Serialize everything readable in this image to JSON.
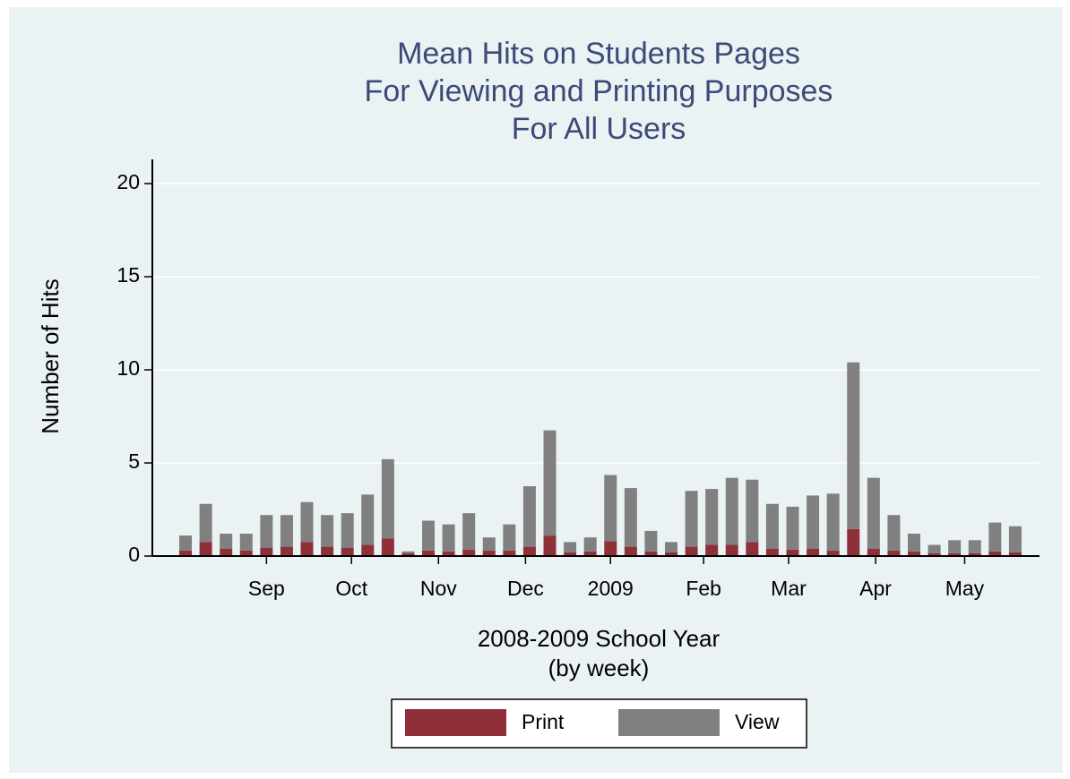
{
  "chart_data": {
    "type": "bar",
    "stacked": true,
    "title": [
      "Mean Hits on Students Pages",
      "For Viewing and Printing Purposes",
      "For All Users"
    ],
    "y_label": "Number of Hits",
    "x_label": [
      "2008-2009 School Year",
      "(by week)"
    ],
    "categories": [
      null,
      null,
      null,
      null,
      null,
      null,
      null,
      null,
      null,
      null,
      null,
      null,
      null,
      null,
      null,
      null,
      null,
      null,
      null,
      null,
      null,
      null,
      null,
      null,
      null,
      null,
      null,
      null,
      null,
      null,
      null,
      null,
      null,
      null,
      null,
      null,
      null,
      null,
      null,
      null,
      null,
      null
    ],
    "series": [
      {
        "name": "Print",
        "color": "#8f3039",
        "values": [
          0.3,
          0.75,
          0.4,
          0.3,
          0.45,
          0.5,
          0.75,
          0.5,
          0.45,
          0.6,
          0.95,
          0.15,
          0.3,
          0.25,
          0.35,
          0.3,
          0.3,
          0.5,
          1.1,
          0.2,
          0.25,
          0.8,
          0.5,
          0.25,
          0.2,
          0.5,
          0.6,
          0.6,
          0.75,
          0.4,
          0.35,
          0.4,
          0.3,
          1.45,
          0.4,
          0.3,
          0.25,
          0.15,
          0.15,
          0.15,
          0.25,
          0.2
        ]
      },
      {
        "name": "View",
        "color": "#808080",
        "values": [
          0.8,
          2.05,
          0.8,
          0.9,
          1.75,
          1.7,
          2.15,
          1.7,
          1.85,
          2.7,
          4.25,
          0.1,
          1.6,
          1.45,
          1.95,
          0.7,
          1.4,
          3.25,
          5.65,
          0.55,
          0.75,
          3.55,
          3.15,
          1.1,
          0.55,
          3.0,
          3.0,
          3.6,
          3.35,
          2.4,
          2.3,
          2.85,
          3.05,
          8.95,
          3.8,
          1.9,
          0.95,
          0.45,
          0.7,
          0.7,
          1.55,
          1.4
        ]
      }
    ],
    "xlim": [
      -1.64,
      42.2
    ],
    "xticks": [
      {
        "value": 4.0,
        "label": "Sep"
      },
      {
        "value": 8.2,
        "label": "Oct"
      },
      {
        "value": 12.5,
        "label": "Nov"
      },
      {
        "value": 16.8,
        "label": "Dec"
      },
      {
        "value": 21.0,
        "label": "2009"
      },
      {
        "value": 25.6,
        "label": "Feb"
      },
      {
        "value": 29.8,
        "label": "Mar"
      },
      {
        "value": 34.1,
        "label": "Apr"
      },
      {
        "value": 38.5,
        "label": "May"
      }
    ],
    "ylim": [
      0,
      21.3
    ],
    "yticks": [
      0,
      5,
      10,
      15,
      20
    ],
    "grid": true,
    "legend": "bottom"
  }
}
